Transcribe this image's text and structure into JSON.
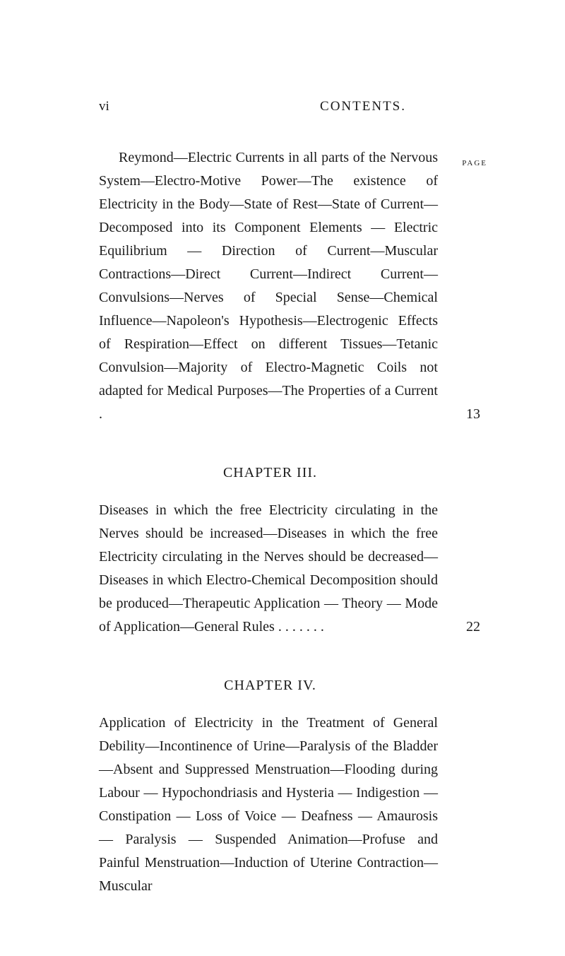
{
  "header": {
    "page_roman": "vi",
    "title": "CONTENTS.",
    "page_label": "PAGE"
  },
  "entries": [
    {
      "text": "Reymond—Electric Currents in all parts of the Nervous System—Electro-Motive Power—The existence of Electricity in the Body—State of Rest—State of Current—Decomposed into its Component Elements — Electric Equilibrium — Direction of Current—Muscular Contractions—Direct Current—Indirect Current—Convulsions—Nerves of Special Sense—Chemical Influence—Napoleon's Hypothesis—Electrogenic Effects of Respiration—Effect on different Tissues—Tetanic Convulsion—Majority of Electro-Magnetic Coils not adapted for Medical Purposes—The Properties of a Current .",
      "page": "13"
    },
    {
      "chapter": "CHAPTER III.",
      "text": "Diseases in which the free Electricity circulating in the Nerves should be increased—Diseases in which the free Electricity circulating in the Nerves should be decreased—Diseases in which Electro-Chemical Decomposition should be produced—Therapeutic Application — Theory — Mode of Application—General Rules . . . . . . .",
      "page": "22"
    },
    {
      "chapter": "CHAPTER IV.",
      "text": "Application of Electricity in the Treatment of General Debility—Incontinence of Urine—Paralysis of the Bladder—Absent and Suppressed Menstruation—Flooding during Labour — Hypochondriasis and Hysteria — Indigestion — Constipation — Loss of Voice — Deafness — Amaurosis — Paralysis — Suspended Animation—Profuse and Painful Menstruation—Induction of Uterine Contraction—Muscular",
      "page": ""
    }
  ]
}
